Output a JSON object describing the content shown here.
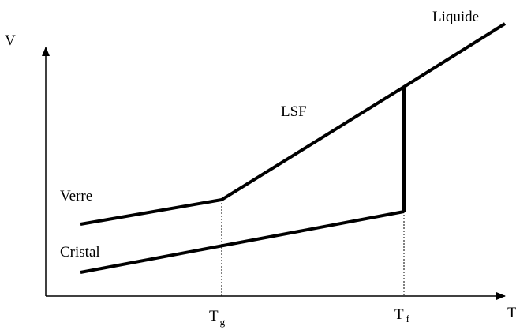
{
  "axes": {
    "y": "V",
    "x": "T"
  },
  "labels": {
    "liquid": "Liquide",
    "supercooled": "LSF",
    "glass": "Verre",
    "crystal": "Cristal"
  },
  "markers": [
    {
      "symbol": "T",
      "subscript": "g"
    },
    {
      "symbol": "T",
      "subscript": "f"
    }
  ]
}
